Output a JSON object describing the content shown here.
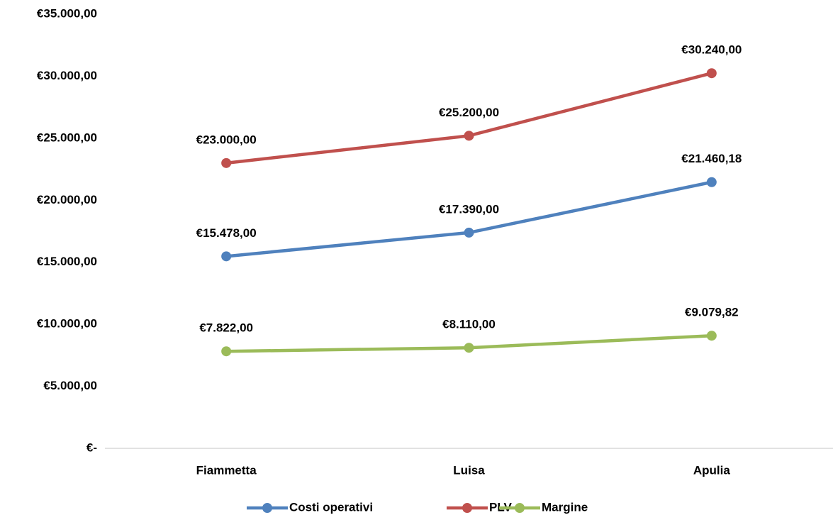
{
  "chart_data": {
    "type": "line",
    "categories": [
      "Fiammetta",
      "Luisa",
      "Apulia"
    ],
    "series": [
      {
        "name": "Costi operativi",
        "color": "#4f81bd",
        "values": [
          15478,
          17390,
          21460.18
        ],
        "value_labels": [
          "€15.478,00",
          "€17.390,00",
          "€21.460,18"
        ]
      },
      {
        "name": "PLV",
        "color": "#c0504d",
        "values": [
          23000,
          25200,
          30240
        ],
        "value_labels": [
          "€23.000,00",
          "€25.200,00",
          "€30.240,00"
        ]
      },
      {
        "name": "Margine",
        "color": "#9bbb59",
        "values": [
          7822,
          8110,
          9079.82
        ],
        "value_labels": [
          "€7.822,00",
          "€8.110,00",
          "€9.079,82"
        ]
      }
    ],
    "ylim": [
      0,
      35000
    ],
    "yticks": [
      {
        "value": 0,
        "label": "€-"
      },
      {
        "value": 5000,
        "label": "€5.000,00"
      },
      {
        "value": 10000,
        "label": "€10.000,00"
      },
      {
        "value": 15000,
        "label": "€15.000,00"
      },
      {
        "value": 20000,
        "label": "€20.000,00"
      },
      {
        "value": 25000,
        "label": "€25.000,00"
      },
      {
        "value": 30000,
        "label": "€30.000,00"
      },
      {
        "value": 35000,
        "label": "€35.000,00"
      }
    ],
    "grid": false,
    "legend": "bottom"
  }
}
